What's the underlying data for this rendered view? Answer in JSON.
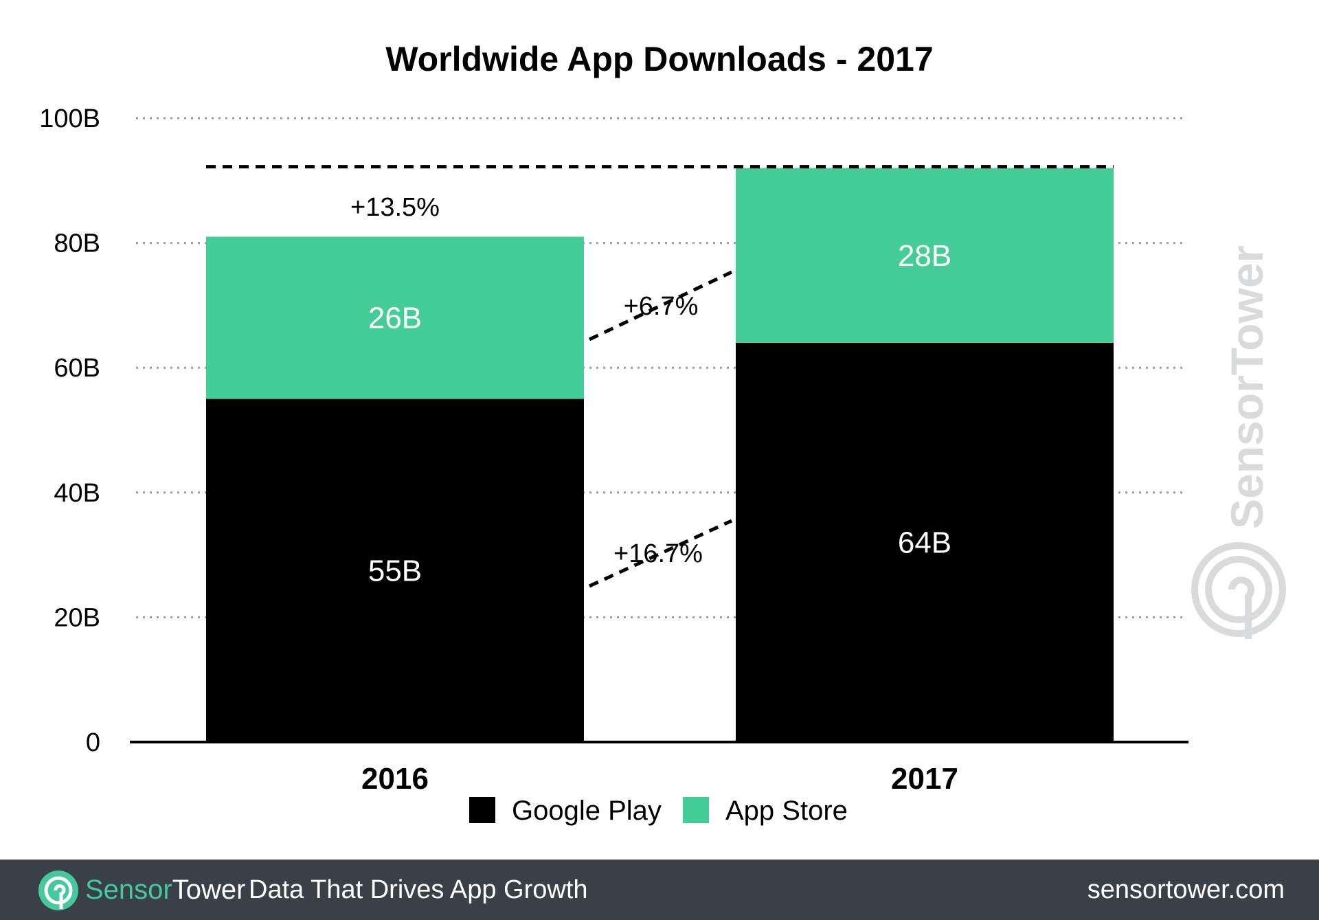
{
  "chart_data": {
    "type": "bar",
    "stacked": true,
    "title": "Worldwide App Downloads - 2017",
    "xlabel": "",
    "ylabel": "",
    "categories": [
      "2016",
      "2017"
    ],
    "ylim": [
      0,
      100
    ],
    "y_ticks": [
      0,
      20,
      40,
      60,
      80,
      100
    ],
    "y_tick_labels": [
      "0",
      "20B",
      "40B",
      "60B",
      "80B",
      "100B"
    ],
    "grid": true,
    "legend_position": "bottom",
    "series": [
      {
        "name": "Google Play",
        "values": [
          55,
          64
        ],
        "labels": [
          "55B",
          "64B"
        ],
        "color": "#000000"
      },
      {
        "name": "App Store",
        "values": [
          26,
          28
        ],
        "labels": [
          "26B",
          "28B"
        ],
        "color": "#45cd97"
      }
    ],
    "annotations": {
      "total_growth": "+13.5%",
      "app_store_growth": "+6.7%",
      "google_play_growth": "+16.7%"
    }
  },
  "watermark": {
    "text": "SensorTower",
    "icon": "sensor-tower-logo-icon"
  },
  "footer": {
    "brand_part1": "Sensor",
    "brand_part2": "Tower",
    "tagline": "Data That Drives App Growth",
    "url": "sensortower.com",
    "logo_icon": "sensor-tower-logo-icon",
    "background_color": "#394048",
    "accent_color": "#45c99a"
  }
}
